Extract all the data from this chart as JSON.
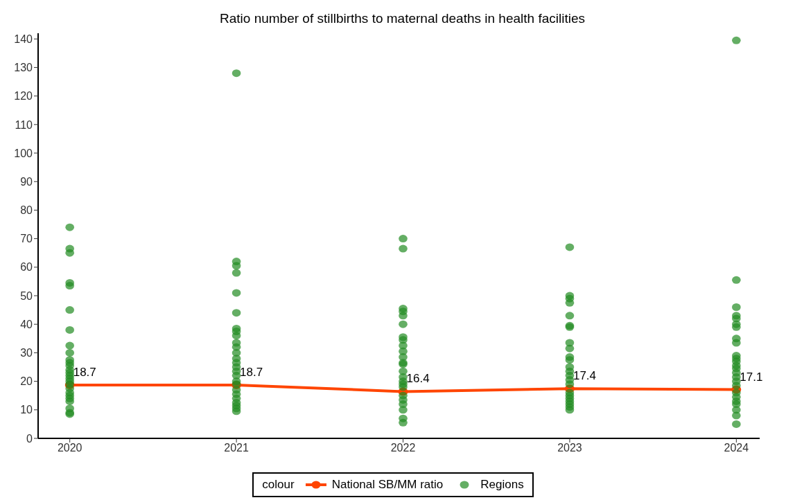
{
  "chart_data": {
    "type": "line",
    "title": "Ratio number of stillbirths to maternal deaths in health facilities",
    "x": [
      2020,
      2021,
      2022,
      2023,
      2024
    ],
    "series": [
      {
        "name": "National SB/MM ratio",
        "color": "#ff4500",
        "values": [
          18.7,
          18.7,
          16.4,
          17.4,
          17.1
        ],
        "data_labels": true,
        "marker": "circle"
      },
      {
        "name": "Regions",
        "type": "scatter",
        "color": "#228b22",
        "marker": "circle",
        "x": [
          2020,
          2020,
          2020,
          2020,
          2020,
          2020,
          2020,
          2020,
          2020,
          2020,
          2020,
          2020,
          2020,
          2020,
          2020,
          2020,
          2020,
          2020,
          2020,
          2020,
          2020,
          2020,
          2020,
          2020,
          2020,
          2020,
          2021,
          2021,
          2021,
          2021,
          2021,
          2021,
          2021,
          2021,
          2021,
          2021,
          2021,
          2021,
          2021,
          2021,
          2021,
          2021,
          2021,
          2021,
          2021,
          2021,
          2021,
          2021,
          2021,
          2021,
          2021,
          2021,
          2022,
          2022,
          2022,
          2022,
          2022,
          2022,
          2022,
          2022,
          2022,
          2022,
          2022,
          2022,
          2022,
          2022,
          2022,
          2022,
          2022,
          2022,
          2022,
          2022,
          2022,
          2022,
          2022,
          2022,
          2023,
          2023,
          2023,
          2023,
          2023,
          2023,
          2023,
          2023,
          2023,
          2023,
          2023,
          2023,
          2023,
          2023,
          2023,
          2023,
          2023,
          2023,
          2023,
          2023,
          2023,
          2023,
          2023,
          2024,
          2024,
          2024,
          2024,
          2024,
          2024,
          2024,
          2024,
          2024,
          2024,
          2024,
          2024,
          2024,
          2024,
          2024,
          2024,
          2024,
          2024,
          2024,
          2024,
          2024,
          2024,
          2024,
          2024,
          2024
        ],
        "values": [
          74,
          66.5,
          65,
          54.5,
          53.5,
          45,
          38,
          32.5,
          30,
          27.5,
          26.5,
          25.5,
          24,
          23,
          22,
          21,
          20,
          19,
          17.5,
          16,
          15,
          14,
          13,
          10.5,
          9,
          8.5,
          128,
          62,
          60.5,
          58,
          51,
          44,
          38.5,
          37.5,
          36,
          33.5,
          32,
          30,
          28,
          26.5,
          25,
          23.5,
          22,
          20,
          19,
          17,
          15.5,
          14,
          12.5,
          11.5,
          10.5,
          9.5,
          70,
          66.5,
          45.5,
          44.5,
          43,
          40,
          35.5,
          34.5,
          32.5,
          30.5,
          28.5,
          26.5,
          26,
          23.5,
          21.5,
          20,
          19,
          18,
          15,
          13.5,
          12,
          10,
          7,
          5.5,
          67,
          50,
          49,
          47.5,
          43,
          39.5,
          39,
          33.5,
          31.5,
          28.5,
          27.5,
          25,
          23.5,
          22,
          20.5,
          19,
          16,
          15,
          14,
          13,
          12,
          11,
          10,
          139.5,
          55.5,
          46,
          43,
          42,
          40,
          39,
          35,
          33.5,
          29,
          28,
          27,
          25.5,
          24.5,
          23,
          21.5,
          20,
          18.5,
          16,
          14.5,
          13,
          12,
          10,
          8,
          5
        ]
      }
    ],
    "xlim": [
      2019.81,
      2024.14
    ],
    "xticks": [
      2020,
      2021,
      2022,
      2023,
      2024
    ],
    "ylim": [
      0,
      142
    ],
    "yticks": [
      0,
      10,
      20,
      30,
      40,
      50,
      60,
      70,
      80,
      90,
      100,
      110,
      120,
      130,
      140
    ],
    "grid": false,
    "legend": "bottom",
    "legend_title": "colour"
  }
}
